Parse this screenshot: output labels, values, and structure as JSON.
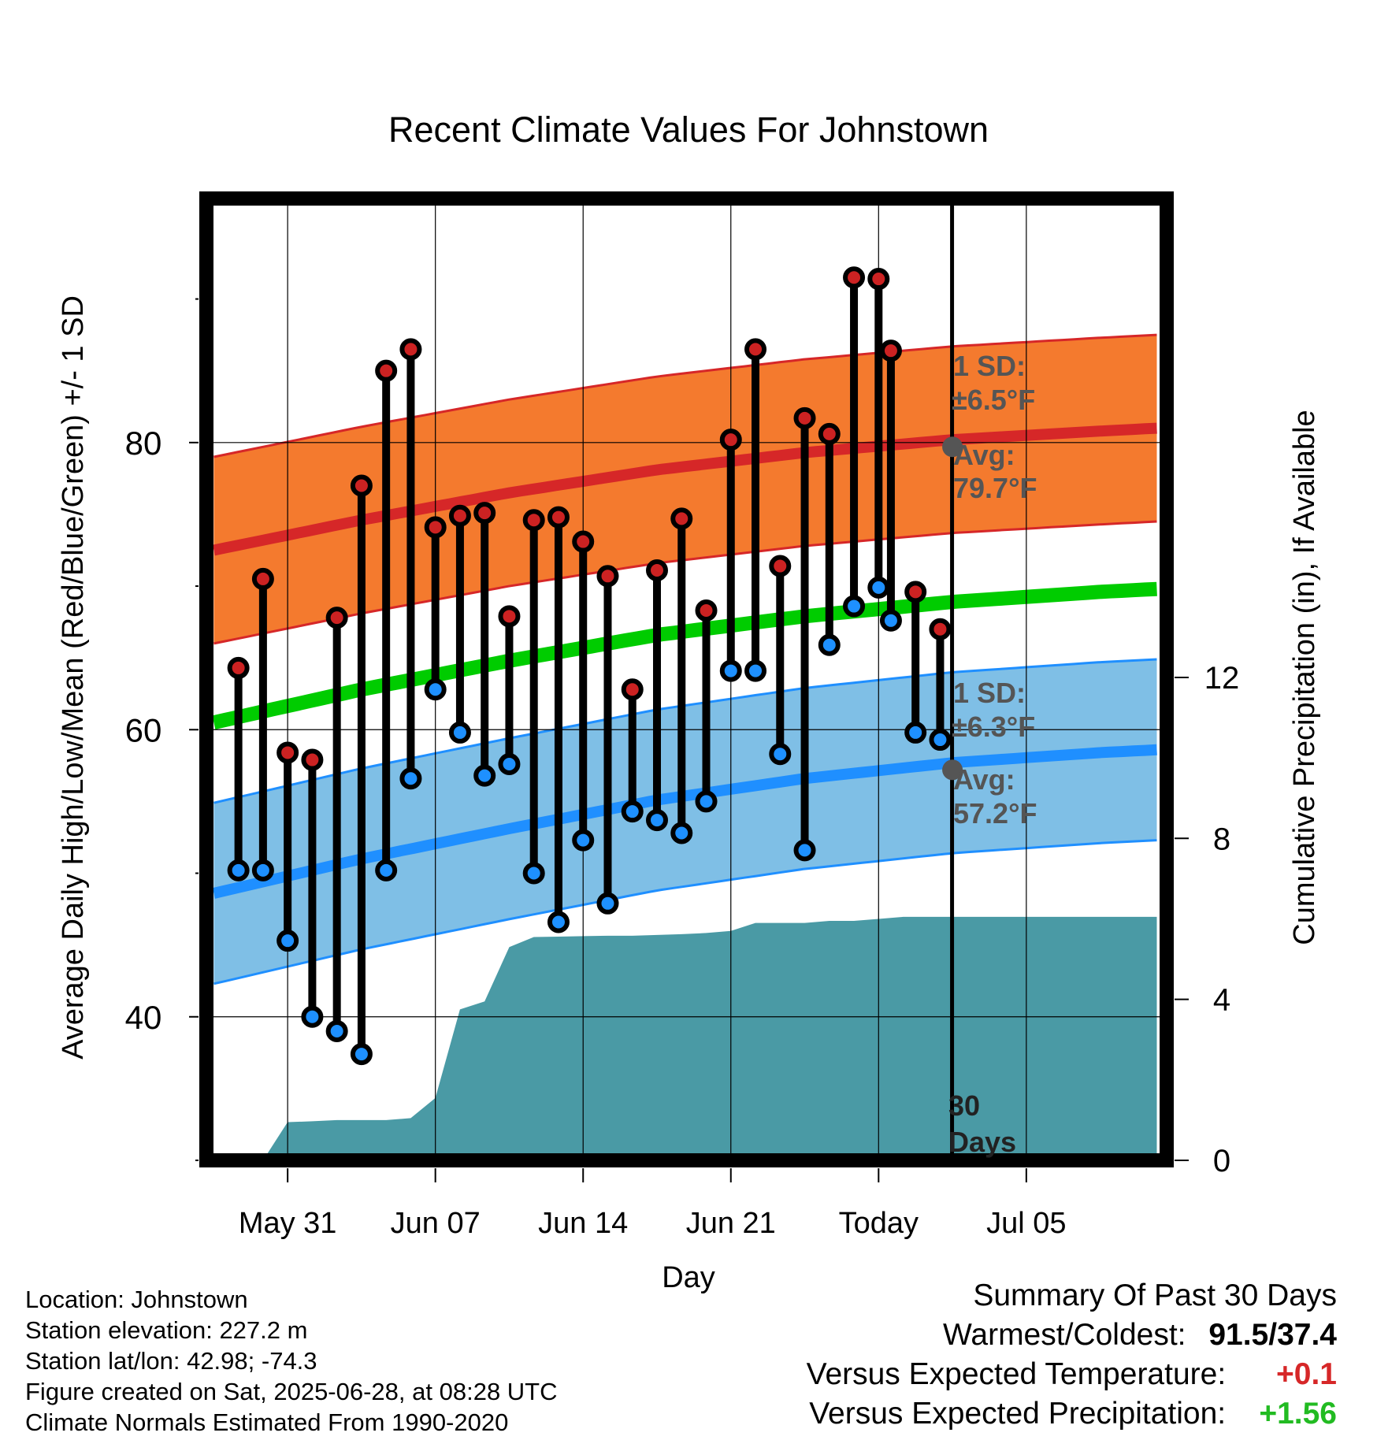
{
  "chart_data": {
    "type": "line",
    "title": "Recent Climate Values For Johnstown",
    "xlabel": "Day",
    "ylabel": "Average Daily High/Low/Mean (Red/Blue/Green) +/- 1 SD",
    "y2label": "Cumulative Precipitation (in), If Available",
    "ylim": [
      30,
      97
    ],
    "y2lim": [
      0,
      23.9
    ],
    "xlim": [
      -30.3,
      8.7
    ],
    "x_unit": "days relative to Today",
    "grid": true,
    "yticks": [
      40,
      60,
      80
    ],
    "y2ticks": [
      0,
      4,
      8,
      12
    ],
    "xticks": [
      {
        "x": -27,
        "label": "May 31"
      },
      {
        "x": -21,
        "label": "Jun 07"
      },
      {
        "x": -15,
        "label": "Jun 14"
      },
      {
        "x": -9,
        "label": "Jun 21"
      },
      {
        "x": -3,
        "label": "Today"
      },
      {
        "x": 3,
        "label": "Jul 05"
      }
    ],
    "colors": {
      "high_band": "#f47a2e",
      "high_avg": "#d62728",
      "high_dot": "#cc2222",
      "low_band": "#7fbfe6",
      "low_avg": "#1f8fff",
      "low_dot": "#1e90ff",
      "mean": "#00cc00",
      "precip": "#4a9aa5"
    },
    "normals": {
      "x": [
        -30,
        -24,
        -18,
        -12,
        -6,
        0,
        6,
        8.3
      ],
      "high_avg": [
        72.5,
        74.6,
        76.5,
        78.1,
        79.3,
        80.2,
        80.8,
        81.0
      ],
      "low_avg": [
        48.6,
        51.0,
        53.1,
        55.1,
        56.6,
        57.7,
        58.4,
        58.6
      ],
      "mean": [
        60.5,
        62.8,
        64.8,
        66.6,
        67.9,
        68.9,
        69.6,
        69.8
      ],
      "high_sd": 6.5,
      "low_sd": 6.3
    },
    "series": [
      {
        "name": "High",
        "x": [
          -29,
          -28,
          -27,
          -26,
          -25,
          -24,
          -23,
          -22,
          -21,
          -20,
          -19,
          -18,
          -17,
          -16,
          -15,
          -14,
          -13,
          -12,
          -11,
          -10,
          -9,
          -8,
          -7,
          -6,
          -5,
          -4,
          -3
        ],
        "values": [
          64.3,
          70.5,
          58.4,
          57.9,
          67.8,
          77.0,
          85.0,
          86.5,
          74.1,
          74.9,
          75.1,
          67.9,
          74.6,
          74.8,
          73.1,
          70.7,
          62.8,
          71.1,
          74.7,
          68.3,
          80.2,
          86.5,
          71.4,
          81.7,
          80.6,
          91.5,
          91.4
        ]
      },
      {
        "name": "Low",
        "x": [
          -29,
          -28,
          -27,
          -26,
          -25,
          -24,
          -23,
          -22,
          -21,
          -20,
          -19,
          -18,
          -17,
          -16,
          -15,
          -14,
          -13,
          -12,
          -11,
          -10,
          -9,
          -8,
          -7,
          -6,
          -5,
          -4,
          -3
        ],
        "values": [
          50.2,
          50.2,
          45.3,
          40.0,
          39.0,
          37.4,
          50.2,
          56.6,
          62.8,
          59.8,
          56.8,
          57.6,
          50.0,
          46.6,
          52.3,
          47.9,
          54.3,
          53.7,
          52.8,
          55.0,
          64.1,
          64.1,
          58.3,
          51.6,
          65.9,
          68.6,
          69.9
        ]
      }
    ],
    "late_points": [
      {
        "x": -2,
        "high": 86.4,
        "low": 67.6
      },
      {
        "x": -1,
        "high": 69.6,
        "low": 59.8
      },
      {
        "x": 0,
        "high": 67.0,
        "low": 59.3
      }
    ],
    "precip": {
      "x": [
        -28,
        -27,
        -26,
        -25,
        -24,
        -23,
        -22,
        -21,
        -20,
        -19,
        -18,
        -17,
        -16,
        -15,
        -14,
        -13,
        -12,
        -11,
        -10,
        -9,
        -8,
        -7,
        -6,
        -5,
        -4,
        -3,
        -2,
        0,
        8.3
      ],
      "values": [
        0,
        0.95,
        0.97,
        1.0,
        1.0,
        1.0,
        1.05,
        1.55,
        3.75,
        3.95,
        5.3,
        5.55,
        5.56,
        5.57,
        5.58,
        5.58,
        5.6,
        5.62,
        5.65,
        5.7,
        5.9,
        5.9,
        5.9,
        5.95,
        5.95,
        6.0,
        6.05,
        6.05,
        6.05
      ]
    },
    "annotations": {
      "high_sd": "1 SD:",
      "high_sd_value": "±6.5°F",
      "high_avg": "Avg:",
      "high_avg_value": "79.7°F",
      "low_sd": "1 SD:",
      "low_sd_value": "±6.3°F",
      "low_avg": "Avg:",
      "low_avg_value": "57.2°F",
      "days_line1": "30",
      "days_line2": "Days",
      "high_marker_value": 79.7,
      "low_marker_value": 57.2
    }
  },
  "footer": {
    "location": "Location: Johnstown",
    "elevation": "Station elevation: 227.2 m",
    "latlon": "Station lat/lon: 42.98; -74.3",
    "created": "Figure created on Sat, 2025-06-28, at 08:28 UTC",
    "normals": "Climate Normals Estimated From 1990-2020"
  },
  "summary": {
    "heading": "Summary Of Past 30 Days",
    "warm_cold_label": "Warmest/Coldest:",
    "warm_cold_value": "91.5/37.4",
    "temp_label": "Versus Expected Temperature:",
    "temp_value": "+0.1",
    "temp_color": "#d62728",
    "precip_label": "Versus Expected Precipitation:",
    "precip_value": "+1.56",
    "precip_color": "#22bb22"
  }
}
